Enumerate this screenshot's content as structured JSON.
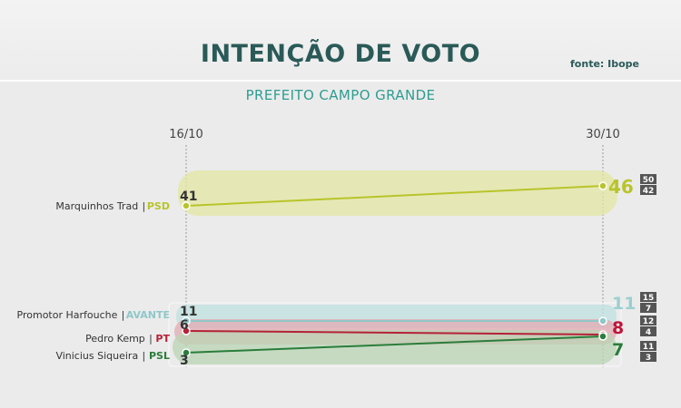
{
  "header": {
    "title": "INTENÇÃO DE VOTO",
    "source": "fonte: Ibope",
    "subtitle": "PREFEITO CAMPO GRANDE"
  },
  "chart_data": {
    "type": "line",
    "x": [
      "16/10",
      "30/10"
    ],
    "ylim": [
      0,
      50
    ],
    "series": [
      {
        "name": "Marquinhos Trad",
        "party": "PSD",
        "values": [
          41,
          46
        ],
        "range": [
          50,
          42
        ],
        "color": "#b8c42a",
        "band": "#e3e7a2",
        "valueColor": "#b8c42a"
      },
      {
        "name": "Promotor Harfouche",
        "party": "AVANTE",
        "values": [
          11,
          11
        ],
        "range": [
          15,
          7
        ],
        "color": "#8fc7c8",
        "band": "#bfe0e0",
        "valueColor": "#9bcfd0"
      },
      {
        "name": "Pedro Kemp",
        "party": "PT",
        "values": [
          6,
          8
        ],
        "range": [
          12,
          4
        ],
        "color": "#b52137",
        "band": "#e3a9b2",
        "valueColor": "#c0143a"
      },
      {
        "name": "Vinicius Siqueira",
        "party": "PSL",
        "values": [
          3,
          7
        ],
        "range": [
          11,
          3
        ],
        "color": "#2a7d3a",
        "band": "#b9d4b4",
        "valueColor": "#2a7d3a"
      }
    ]
  }
}
